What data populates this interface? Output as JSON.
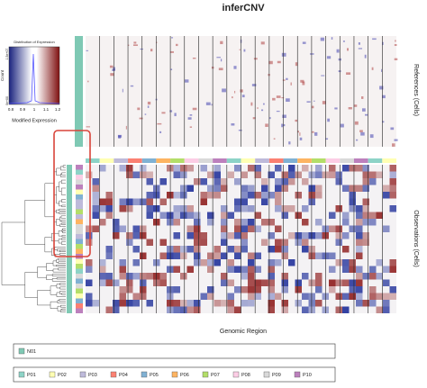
{
  "title": "inferCNV",
  "color_key": {
    "title": "Distribution of Expression",
    "xlabel": "Modified Expression",
    "ylabel": "Count",
    "xticks": [
      "0.8",
      "0.9",
      "1",
      "1.1",
      "1.2"
    ],
    "yticks": [
      "0e+00",
      "1.5e+07"
    ]
  },
  "references_label": "References (Cells)",
  "observations_label": "Observations (Cells)",
  "xlabel": "Genomic Region",
  "reference_legend": [
    "N01"
  ],
  "observation_legend": [
    "P01",
    "P02",
    "P03",
    "P04",
    "P05",
    "P06",
    "P07",
    "P08",
    "P09",
    "P10"
  ]
}
